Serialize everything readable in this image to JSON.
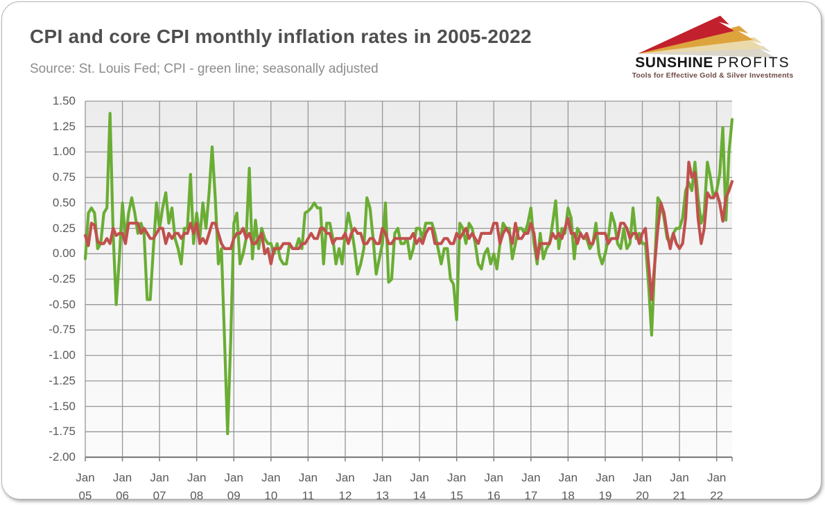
{
  "header": {
    "title": "CPI and core CPI monthly inflation rates in 2005-2022",
    "source": "Source: St. Louis Fed; CPI - green line; seasonally adjusted"
  },
  "logo": {
    "brand_primary": "SUNSHINE",
    "brand_secondary": "PROFITS",
    "tagline": "Tools for Effective Gold & Silver Investments",
    "icon": "lightning-bolts-icon",
    "colors": {
      "red_bolt": "#c2202d",
      "gold_bolt": "#dda43e",
      "pale_bolt": "#ead9ab",
      "shadow_bolt": "#cfc8b8"
    }
  },
  "chart_data": {
    "type": "line",
    "title": "CPI and core CPI monthly inflation rates in 2005-2022",
    "x_start": "Jan 2005",
    "x_end": "Jun 2022",
    "months_per_year": 12,
    "x_tick_month_label": "Jan",
    "x_tick_years": [
      "05",
      "06",
      "07",
      "08",
      "09",
      "10",
      "11",
      "12",
      "13",
      "14",
      "15",
      "16",
      "17",
      "18",
      "19",
      "20",
      "21",
      "22"
    ],
    "y_ticks": [
      "1.50",
      "1.25",
      "1.00",
      "0.75",
      "0.50",
      "0.25",
      "0.00",
      "-0.25",
      "-0.50",
      "-0.75",
      "-1.00",
      "-1.25",
      "-1.50",
      "-1.75",
      "-2.00"
    ],
    "ylim": [
      -2.0,
      1.5
    ],
    "grid": true,
    "legend_position": "none",
    "colors": {
      "grid": "#969696",
      "axis": "#7f7f7f",
      "labels": "#595959"
    },
    "series": [
      {
        "name": "CPI",
        "color": "#6aad34",
        "values": [
          -0.05,
          0.4,
          0.45,
          0.4,
          0.05,
          0.1,
          0.4,
          0.45,
          1.38,
          0.2,
          -0.5,
          -0.05,
          0.5,
          0.15,
          0.4,
          0.55,
          0.4,
          0.2,
          0.3,
          0.2,
          -0.45,
          -0.45,
          0.05,
          0.5,
          0.25,
          0.45,
          0.6,
          0.3,
          0.45,
          0.15,
          0.05,
          -0.1,
          0.25,
          0.25,
          0.78,
          0.1,
          0.4,
          0.15,
          0.5,
          0.25,
          0.6,
          1.05,
          0.55,
          -0.1,
          0.05,
          -0.85,
          -1.77,
          -0.85,
          0.3,
          0.4,
          -0.1,
          0.0,
          0.15,
          0.84,
          -0.05,
          0.33,
          0.05,
          0.25,
          0.15,
          0.1,
          0.1,
          0.0,
          0.1,
          -0.05,
          -0.1,
          -0.1,
          0.1,
          0.05,
          0.05,
          0.15,
          0.05,
          0.4,
          0.42,
          0.45,
          0.5,
          0.45,
          0.45,
          -0.1,
          0.3,
          0.3,
          0.15,
          -0.1,
          0.05,
          -0.1,
          0.2,
          0.4,
          0.25,
          0.05,
          -0.2,
          -0.1,
          0.05,
          0.55,
          0.45,
          0.15,
          -0.2,
          -0.05,
          0.1,
          0.5,
          -0.28,
          -0.25,
          0.2,
          0.25,
          0.1,
          0.1,
          0.15,
          -0.05,
          0.05,
          0.25,
          0.25,
          0.15,
          0.3,
          0.3,
          0.3,
          0.2,
          0.05,
          -0.1,
          0.05,
          0.05,
          -0.25,
          -0.3,
          -0.65,
          0.3,
          0.25,
          0.1,
          0.3,
          0.25,
          0.1,
          -0.1,
          -0.15,
          0.0,
          0.05,
          -0.1,
          0.0,
          -0.15,
          0.1,
          0.3,
          0.25,
          0.25,
          -0.05,
          0.1,
          0.25,
          0.25,
          0.2,
          0.3,
          0.45,
          0.1,
          -0.1,
          0.2,
          -0.05,
          0.05,
          0.1,
          0.3,
          0.52,
          0.05,
          0.25,
          0.2,
          0.45,
          0.35,
          -0.05,
          0.25,
          0.2,
          0.15,
          0.15,
          0.05,
          0.1,
          0.3,
          0.0,
          -0.1,
          0.0,
          0.15,
          0.4,
          0.3,
          0.1,
          0.05,
          0.25,
          0.05,
          0.1,
          0.45,
          0.15,
          0.2,
          0.1,
          0.1,
          -0.3,
          -0.8,
          -0.1,
          0.55,
          0.5,
          0.35,
          0.15,
          0.1,
          0.2,
          0.25,
          0.25,
          0.35,
          0.62,
          0.7,
          0.62,
          0.9,
          0.55,
          0.3,
          0.4,
          0.9,
          0.75,
          0.55,
          0.62,
          0.78,
          1.24,
          0.33,
          1.0,
          1.32
        ]
      },
      {
        "name": "Core CPI",
        "color": "#c0504d",
        "values": [
          0.18,
          0.08,
          0.3,
          0.28,
          0.12,
          0.1,
          0.1,
          0.15,
          0.1,
          0.25,
          0.18,
          0.2,
          0.2,
          0.1,
          0.3,
          0.3,
          0.3,
          0.3,
          0.2,
          0.25,
          0.2,
          0.15,
          0.15,
          0.2,
          0.25,
          0.25,
          0.1,
          0.2,
          0.15,
          0.2,
          0.2,
          0.15,
          0.2,
          0.2,
          0.3,
          0.2,
          0.3,
          0.1,
          0.15,
          0.1,
          0.2,
          0.3,
          0.3,
          0.2,
          0.1,
          0.05,
          0.05,
          0.05,
          0.15,
          0.2,
          0.2,
          0.25,
          0.15,
          0.2,
          0.1,
          0.1,
          0.15,
          0.2,
          0.0,
          0.05,
          -0.1,
          0.05,
          0.05,
          0.05,
          0.1,
          0.1,
          0.1,
          0.05,
          0.05,
          0.05,
          0.1,
          0.1,
          0.15,
          0.2,
          0.15,
          0.15,
          0.25,
          0.25,
          0.2,
          0.2,
          0.1,
          0.15,
          0.15,
          0.15,
          0.2,
          0.1,
          0.2,
          0.25,
          0.2,
          0.2,
          0.1,
          0.1,
          0.15,
          0.15,
          0.1,
          0.1,
          0.25,
          0.2,
          0.1,
          0.1,
          0.15,
          0.15,
          0.15,
          0.15,
          0.15,
          0.15,
          0.2,
          0.1,
          0.15,
          0.1,
          0.2,
          0.25,
          0.25,
          0.1,
          0.1,
          0.1,
          0.15,
          0.15,
          0.1,
          0.1,
          0.2,
          0.15,
          0.2,
          0.25,
          0.15,
          0.2,
          0.15,
          0.1,
          0.2,
          0.2,
          0.2,
          0.2,
          0.3,
          0.3,
          0.1,
          0.2,
          0.25,
          0.2,
          0.1,
          0.3,
          0.15,
          0.15,
          0.2,
          0.2,
          0.3,
          0.2,
          -0.05,
          0.1,
          0.1,
          0.1,
          0.1,
          0.2,
          0.15,
          0.2,
          0.15,
          0.25,
          0.35,
          0.2,
          0.2,
          0.1,
          0.2,
          0.15,
          0.2,
          0.1,
          0.1,
          0.2,
          0.2,
          0.2,
          0.2,
          0.1,
          0.15,
          0.15,
          0.15,
          0.3,
          0.3,
          0.25,
          0.15,
          0.2,
          0.2,
          0.1,
          0.2,
          0.25,
          -0.1,
          -0.45,
          -0.1,
          0.25,
          0.5,
          0.4,
          0.2,
          0.05,
          0.2,
          0.1,
          0.05,
          0.1,
          0.35,
          0.9,
          0.75,
          0.8,
          0.35,
          0.1,
          0.25,
          0.6,
          0.55,
          0.55,
          0.6,
          0.5,
          0.32,
          0.55,
          0.62,
          0.71
        ]
      }
    ]
  }
}
